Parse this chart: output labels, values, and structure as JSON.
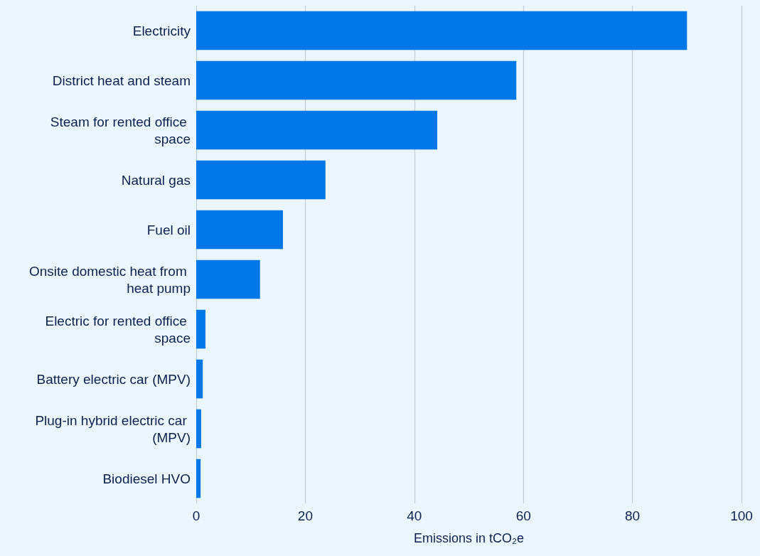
{
  "chart_data": {
    "type": "bar",
    "orientation": "horizontal",
    "xlabel": "Emissions in tCO₂e",
    "categories": [
      "Electricity",
      "District heat and steam",
      "Steam for rented office space",
      "Natural gas",
      "Fuel oil",
      "Onsite domestic heat from heat pump",
      "Electric for rented office space",
      "Battery electric car (MPV)",
      "Plug-in hybrid electric car (MPV)",
      "Biodiesel HVO"
    ],
    "values": [
      90,
      58.7,
      44.2,
      23.7,
      15.9,
      11.7,
      1.7,
      1.2,
      0.9,
      0.8
    ],
    "color": "#0077e6",
    "xlim": [
      0,
      100
    ],
    "xticks": [
      0,
      20,
      40,
      60,
      80,
      100
    ],
    "grid": "x"
  }
}
